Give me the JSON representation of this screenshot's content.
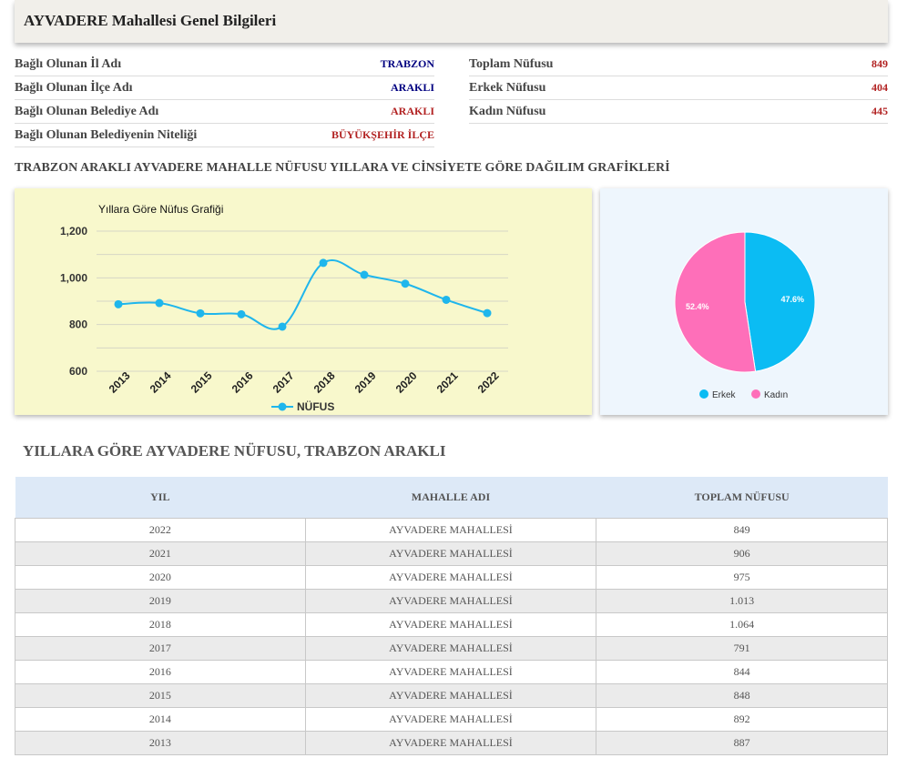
{
  "page_title": "AYVADERE Mahallesi Genel Bilgileri",
  "info_left": [
    {
      "label": "Bağlı Olunan İl Adı",
      "value": "TRABZON",
      "color": "#000080"
    },
    {
      "label": "Bağlı Olunan İlçe Adı",
      "value": "ARAKLI",
      "color": "#000080"
    },
    {
      "label": "Bağlı Olunan Belediye Adı",
      "value": "ARAKLI",
      "color": "#b22222"
    },
    {
      "label": "Bağlı Olunan Belediyenin Niteliği",
      "value": "BÜYÜKŞEHİR İLÇE",
      "color": "#b22222"
    }
  ],
  "info_right": [
    {
      "label": "Toplam Nüfusu",
      "value": "849"
    },
    {
      "label": "Erkek Nüfusu",
      "value": "404"
    },
    {
      "label": "Kadın Nüfusu",
      "value": "445"
    }
  ],
  "charts_title": "TRABZON ARAKLI AYVADERE MAHALLE NÜFUSU YILLARA VE CİNSİYETE GÖRE DAĞILIM GRAFİKLERİ",
  "chart_data": [
    {
      "type": "line",
      "title": "Yıllara Göre Nüfus Grafiği",
      "categories": [
        "2013",
        "2014",
        "2015",
        "2016",
        "2017",
        "2018",
        "2019",
        "2020",
        "2021",
        "2022"
      ],
      "series": [
        {
          "name": "NÜFUS",
          "values": [
            887,
            892,
            848,
            844,
            791,
            1064,
            1013,
            975,
            906,
            849
          ],
          "color": "#1fb6ec"
        }
      ],
      "yticks": [
        "600",
        "800",
        "1,000",
        "1,200"
      ],
      "ylim": [
        600,
        1200
      ],
      "grid": true,
      "legend": "bottom"
    },
    {
      "type": "pie",
      "slices": [
        {
          "name": "Erkek",
          "value": 47.6,
          "label": "47.6%",
          "color": "#0bbcf3"
        },
        {
          "name": "Kadın",
          "value": 52.4,
          "label": "52.4%",
          "color": "#fe6fb9"
        }
      ],
      "legend": "bottom"
    }
  ],
  "table_title": "YILLARA GÖRE AYVADERE NÜFUSU, TRABZON ARAKLI",
  "table": {
    "headers": [
      "YIL",
      "MAHALLE ADI",
      "TOPLAM NÜFUSU"
    ],
    "rows": [
      [
        "2022",
        "AYVADERE MAHALLESİ",
        "849"
      ],
      [
        "2021",
        "AYVADERE MAHALLESİ",
        "906"
      ],
      [
        "2020",
        "AYVADERE MAHALLESİ",
        "975"
      ],
      [
        "2019",
        "AYVADERE MAHALLESİ",
        "1.013"
      ],
      [
        "2018",
        "AYVADERE MAHALLESİ",
        "1.064"
      ],
      [
        "2017",
        "AYVADERE MAHALLESİ",
        "791"
      ],
      [
        "2016",
        "AYVADERE MAHALLESİ",
        "844"
      ],
      [
        "2015",
        "AYVADERE MAHALLESİ",
        "848"
      ],
      [
        "2014",
        "AYVADERE MAHALLESİ",
        "892"
      ],
      [
        "2013",
        "AYVADERE MAHALLESİ",
        "887"
      ]
    ]
  }
}
